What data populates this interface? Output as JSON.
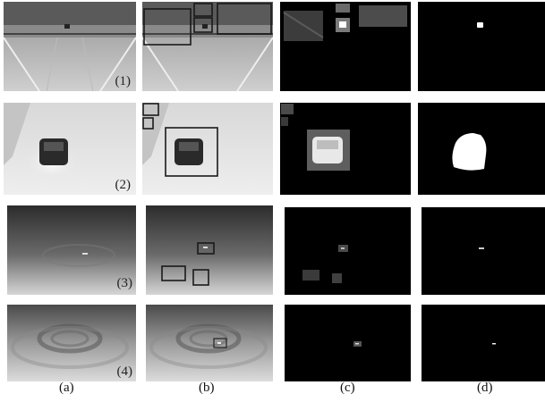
{
  "figure": {
    "row_labels": [
      "(1)",
      "(2)",
      "(3)",
      "(4)"
    ],
    "column_labels": [
      "(a)",
      "(b)",
      "(c)",
      "(d)"
    ]
  }
}
